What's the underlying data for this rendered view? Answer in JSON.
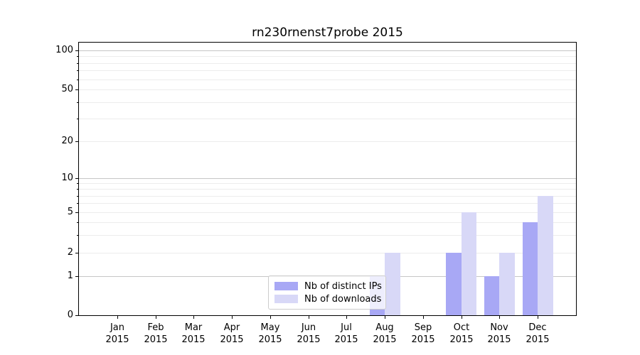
{
  "chart_data": {
    "type": "bar",
    "title": "rn230rnenst7probe 2015",
    "categories": [
      "Jan",
      "Feb",
      "Mar",
      "Apr",
      "May",
      "Jun",
      "Jul",
      "Aug",
      "Sep",
      "Oct",
      "Nov",
      "Dec"
    ],
    "x_tick_year": "2015",
    "series": [
      {
        "name": "Nb of distinct IPs",
        "color": "#a8a8f5",
        "values": [
          0,
          0,
          0,
          0,
          0,
          0,
          0,
          1,
          0,
          2,
          1,
          4
        ]
      },
      {
        "name": "Nb of downloads",
        "color": "#d8d8f7",
        "values": [
          0,
          0,
          0,
          0,
          0,
          0,
          0,
          2,
          0,
          5,
          2,
          7
        ]
      }
    ],
    "yscale": "symlog",
    "ylim": [
      0,
      115
    ],
    "y_ticks_labeled": [
      0,
      1,
      2,
      5,
      10,
      20,
      50,
      100
    ],
    "y_gridlines_dark": [
      1,
      10,
      100
    ],
    "y_gridlines_light": [
      2,
      3,
      4,
      5,
      6,
      7,
      8,
      9,
      20,
      30,
      40,
      50,
      60,
      70,
      80,
      90
    ],
    "y_minor_unlabeled": [
      3,
      4,
      6,
      7,
      8,
      9,
      30,
      40,
      60,
      70,
      80,
      90
    ],
    "grid": true,
    "legend_position": "lower center",
    "colors": {
      "grid_major": "#c6c6c6",
      "grid_minor": "#ececec",
      "spine": "#000000",
      "background": "#ffffff"
    }
  }
}
